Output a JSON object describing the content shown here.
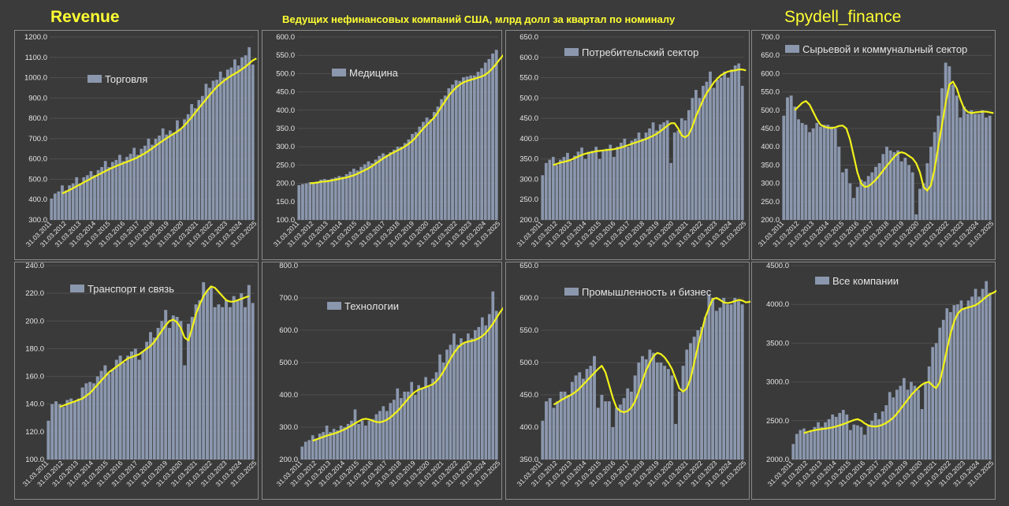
{
  "header": {
    "left_title": "Revenue",
    "center_title": "Ведущих нефинансовых компаний США, млрд долл за квартал по номиналу",
    "right_title": "Spydell_finance"
  },
  "colors": {
    "bar": "#8b97ad",
    "trend": "#f2f21a",
    "grid": "#4f4f4f",
    "text": "#e6e6e6",
    "panel_bg": "#3a3a3a"
  },
  "x_tick_labels": [
    "31.03.2011",
    "31.03.2012",
    "31.03.2013",
    "31.03.2014",
    "31.03.2015",
    "31.03.2016",
    "31.03.2017",
    "31.03.2018",
    "31.03.2019",
    "31.03.2020",
    "31.03.2021",
    "31.03.2022",
    "31.03.2023",
    "31.03.2024",
    "31.03.2025"
  ],
  "chart_data": [
    {
      "type": "bar",
      "title": "Торговля",
      "x_start": "31.03.2011",
      "frequency": "quarterly",
      "ylim": [
        300,
        1200
      ],
      "ystep": 100,
      "ydecimals": 1,
      "values": [
        405,
        430,
        440,
        470,
        445,
        470,
        480,
        510,
        480,
        510,
        520,
        540,
        520,
        545,
        560,
        590,
        560,
        585,
        595,
        620,
        590,
        610,
        625,
        655,
        620,
        650,
        665,
        700,
        670,
        700,
        715,
        750,
        720,
        740,
        730,
        790,
        750,
        795,
        820,
        870,
        850,
        890,
        910,
        970,
        950,
        985,
        990,
        1030,
        1000,
        1040,
        1050,
        1090,
        1060,
        1100,
        1110,
        1150,
        1065
      ],
      "trend": [
        430,
        438,
        447,
        456,
        466,
        475,
        485,
        494,
        504,
        513,
        522,
        531,
        540,
        549,
        557,
        565,
        572,
        579,
        586,
        593,
        600,
        608,
        618,
        628,
        640,
        652,
        665,
        678,
        690,
        702,
        713,
        724,
        735,
        748,
        765,
        785,
        806,
        828,
        850,
        872,
        893,
        915,
        935,
        955,
        970,
        985,
        998,
        1010,
        1020,
        1030,
        1042,
        1055,
        1070,
        1085,
        1095
      ]
    },
    {
      "type": "bar",
      "title": "Медицина",
      "x_start": "31.03.2011",
      "frequency": "quarterly",
      "ylim": [
        100,
        600
      ],
      "ystep": 50,
      "ydecimals": 1,
      "values": [
        195,
        198,
        200,
        203,
        200,
        205,
        210,
        212,
        210,
        213,
        216,
        220,
        218,
        225,
        232,
        240,
        235,
        245,
        252,
        260,
        255,
        265,
        275,
        282,
        278,
        285,
        292,
        300,
        300,
        310,
        320,
        335,
        340,
        355,
        368,
        380,
        375,
        395,
        410,
        430,
        440,
        460,
        470,
        482,
        480,
        490,
        492,
        495,
        495,
        505,
        515,
        530,
        540,
        555,
        565
      ],
      "trend": [
        200,
        201,
        202,
        204,
        205,
        206,
        208,
        210,
        212,
        214,
        216,
        219,
        222,
        226,
        231,
        236,
        241,
        247,
        254,
        261,
        268,
        274,
        280,
        285,
        290,
        295,
        301,
        308,
        316,
        326,
        338,
        350,
        360,
        370,
        380,
        394,
        410,
        425,
        440,
        452,
        462,
        470,
        476,
        480,
        483,
        486,
        489,
        492,
        497,
        505,
        515,
        527,
        540,
        552,
        562
      ]
    },
    {
      "type": "bar",
      "title": "Потребительский сектор",
      "x_start": "31.03.2011",
      "frequency": "quarterly",
      "ylim": [
        200,
        650
      ],
      "ystep": 50,
      "ydecimals": 1,
      "values": [
        310,
        340,
        348,
        355,
        335,
        348,
        355,
        365,
        345,
        358,
        368,
        378,
        350,
        368,
        370,
        380,
        350,
        370,
        375,
        385,
        355,
        380,
        390,
        400,
        380,
        395,
        400,
        415,
        400,
        415,
        425,
        440,
        420,
        435,
        440,
        445,
        340,
        415,
        420,
        450,
        445,
        470,
        500,
        520,
        500,
        530,
        540,
        565,
        525,
        545,
        550,
        565,
        550,
        570,
        580,
        585,
        530
      ],
      "trend": [
        335,
        338,
        341,
        343,
        345,
        348,
        352,
        356,
        360,
        363,
        365,
        367,
        369,
        370,
        371,
        372,
        373,
        374,
        376,
        378,
        381,
        384,
        387,
        390,
        393,
        396,
        399,
        403,
        407,
        412,
        418,
        425,
        432,
        438,
        438,
        425,
        408,
        403,
        410,
        430,
        455,
        475,
        495,
        512,
        525,
        538,
        548,
        556,
        561,
        565,
        567,
        568,
        570,
        570,
        568
      ]
    },
    {
      "type": "bar",
      "title": "Сырьевой и коммунальный сектор",
      "x_start": "31.03.2011",
      "frequency": "quarterly",
      "ylim": [
        200,
        700
      ],
      "ystep": 50,
      "ydecimals": 1,
      "values": [
        485,
        535,
        540,
        510,
        475,
        465,
        460,
        440,
        450,
        465,
        455,
        460,
        460,
        455,
        450,
        400,
        330,
        340,
        300,
        260,
        290,
        310,
        305,
        320,
        330,
        345,
        355,
        380,
        400,
        390,
        385,
        390,
        360,
        370,
        350,
        330,
        215,
        285,
        300,
        355,
        400,
        440,
        485,
        560,
        630,
        620,
        570,
        540,
        480,
        510,
        490,
        500,
        490,
        490,
        500,
        480,
        485
      ],
      "trend": [
        500,
        510,
        520,
        525,
        515,
        495,
        475,
        460,
        455,
        452,
        451,
        453,
        457,
        458,
        450,
        420,
        375,
        330,
        300,
        290,
        292,
        300,
        310,
        322,
        335,
        348,
        360,
        372,
        382,
        385,
        382,
        375,
        368,
        355,
        330,
        290,
        280,
        295,
        340,
        400,
        460,
        520,
        570,
        578,
        560,
        530,
        505,
        495,
        492,
        494,
        495,
        496,
        496,
        494,
        492
      ]
    },
    {
      "type": "bar",
      "title": "Транспорт и связь",
      "x_start": "31.03.2011",
      "frequency": "quarterly",
      "ylim": [
        100,
        240
      ],
      "ystep": 20,
      "ydecimals": 1,
      "values": [
        128,
        140,
        142,
        140,
        138,
        143,
        144,
        142,
        144,
        152,
        155,
        156,
        155,
        160,
        164,
        168,
        162,
        165,
        172,
        175,
        170,
        175,
        178,
        180,
        172,
        178,
        185,
        192,
        188,
        195,
        200,
        208,
        195,
        204,
        203,
        200,
        168,
        198,
        203,
        212,
        215,
        228,
        222,
        225,
        210,
        212,
        210,
        215,
        210,
        218,
        215,
        220,
        210,
        226,
        213
      ],
      "trend": [
        138,
        139,
        140,
        141,
        142,
        143,
        144,
        146,
        148,
        151,
        154,
        157,
        160,
        163,
        165,
        167,
        169,
        171,
        173,
        174,
        175,
        176,
        178,
        180,
        182,
        185,
        189,
        193,
        197,
        200,
        201,
        199,
        195,
        188,
        186,
        195,
        205,
        212,
        218,
        222,
        225,
        224,
        221,
        218,
        215,
        214,
        214,
        215,
        216,
        217,
        218
      ]
    },
    {
      "type": "bar",
      "title": "Технологии",
      "x_start": "31.03.2011",
      "frequency": "quarterly",
      "ylim": [
        200,
        800
      ],
      "ystep": 100,
      "ydecimals": 1,
      "values": [
        240,
        255,
        260,
        275,
        265,
        280,
        285,
        305,
        285,
        295,
        290,
        305,
        300,
        310,
        320,
        355,
        310,
        320,
        305,
        320,
        325,
        340,
        350,
        365,
        350,
        375,
        385,
        420,
        390,
        410,
        410,
        440,
        400,
        430,
        420,
        455,
        425,
        450,
        470,
        525,
        500,
        540,
        555,
        590,
        555,
        575,
        560,
        590,
        575,
        600,
        610,
        640,
        615,
        650,
        720,
        660
      ],
      "trend": [
        258,
        262,
        266,
        270,
        274,
        277,
        280,
        284,
        288,
        293,
        299,
        305,
        312,
        318,
        324,
        326,
        324,
        320,
        316,
        315,
        318,
        323,
        330,
        340,
        350,
        362,
        375,
        388,
        400,
        410,
        416,
        420,
        424,
        428,
        433,
        442,
        455,
        472,
        492,
        512,
        530,
        545,
        555,
        562,
        565,
        567,
        570,
        575,
        582,
        592,
        605,
        620,
        638,
        655,
        670
      ]
    },
    {
      "type": "bar",
      "title": "Промышленность и бизнес",
      "x_start": "31.03.2011",
      "frequency": "quarterly",
      "ylim": [
        350,
        650
      ],
      "ystep": 50,
      "ydecimals": 1,
      "values": [
        410,
        440,
        445,
        430,
        440,
        455,
        455,
        450,
        470,
        480,
        485,
        475,
        490,
        495,
        510,
        430,
        450,
        440,
        440,
        400,
        430,
        435,
        445,
        460,
        455,
        480,
        500,
        510,
        505,
        520,
        515,
        500,
        500,
        495,
        490,
        480,
        405,
        455,
        495,
        520,
        530,
        540,
        550,
        555,
        570,
        605,
        600,
        580,
        585,
        600,
        590,
        590,
        600,
        595,
        590
      ],
      "trend": [
        435,
        438,
        442,
        445,
        448,
        451,
        455,
        460,
        466,
        472,
        478,
        484,
        490,
        495,
        485,
        465,
        445,
        430,
        425,
        423,
        425,
        430,
        440,
        455,
        472,
        488,
        500,
        510,
        515,
        513,
        508,
        500,
        490,
        475,
        460,
        455,
        460,
        475,
        500,
        525,
        548,
        570,
        585,
        598,
        600,
        597,
        593,
        592,
        593,
        595,
        597,
        596,
        593,
        594,
        595
      ]
    },
    {
      "type": "bar",
      "title": "Все компании",
      "x_start": "31.03.2011",
      "frequency": "quarterly",
      "ylim": [
        2000,
        4500
      ],
      "ystep": 500,
      "ydecimals": 1,
      "values": [
        2200,
        2330,
        2380,
        2400,
        2340,
        2380,
        2420,
        2480,
        2420,
        2480,
        2520,
        2580,
        2550,
        2600,
        2640,
        2580,
        2380,
        2450,
        2440,
        2420,
        2320,
        2450,
        2500,
        2600,
        2520,
        2620,
        2700,
        2870,
        2800,
        2900,
        2950,
        3050,
        2900,
        3000,
        2950,
        2900,
        2650,
        3000,
        3200,
        3450,
        3500,
        3700,
        3800,
        3950,
        3900,
        3990,
        4000,
        4050,
        3950,
        4050,
        4100,
        4200,
        4100,
        4200,
        4300,
        4150
      ],
      "trend": [
        2340,
        2355,
        2368,
        2378,
        2386,
        2392,
        2398,
        2405,
        2414,
        2426,
        2440,
        2456,
        2474,
        2492,
        2510,
        2520,
        2500,
        2465,
        2440,
        2428,
        2425,
        2432,
        2448,
        2472,
        2502,
        2540,
        2590,
        2650,
        2710,
        2770,
        2830,
        2880,
        2925,
        2965,
        2990,
        3000,
        2950,
        2920,
        3000,
        3200,
        3420,
        3620,
        3780,
        3880,
        3930,
        3950,
        3960,
        3975,
        3990,
        4020,
        4060,
        4100,
        4130,
        4150,
        4180
      ]
    }
  ]
}
